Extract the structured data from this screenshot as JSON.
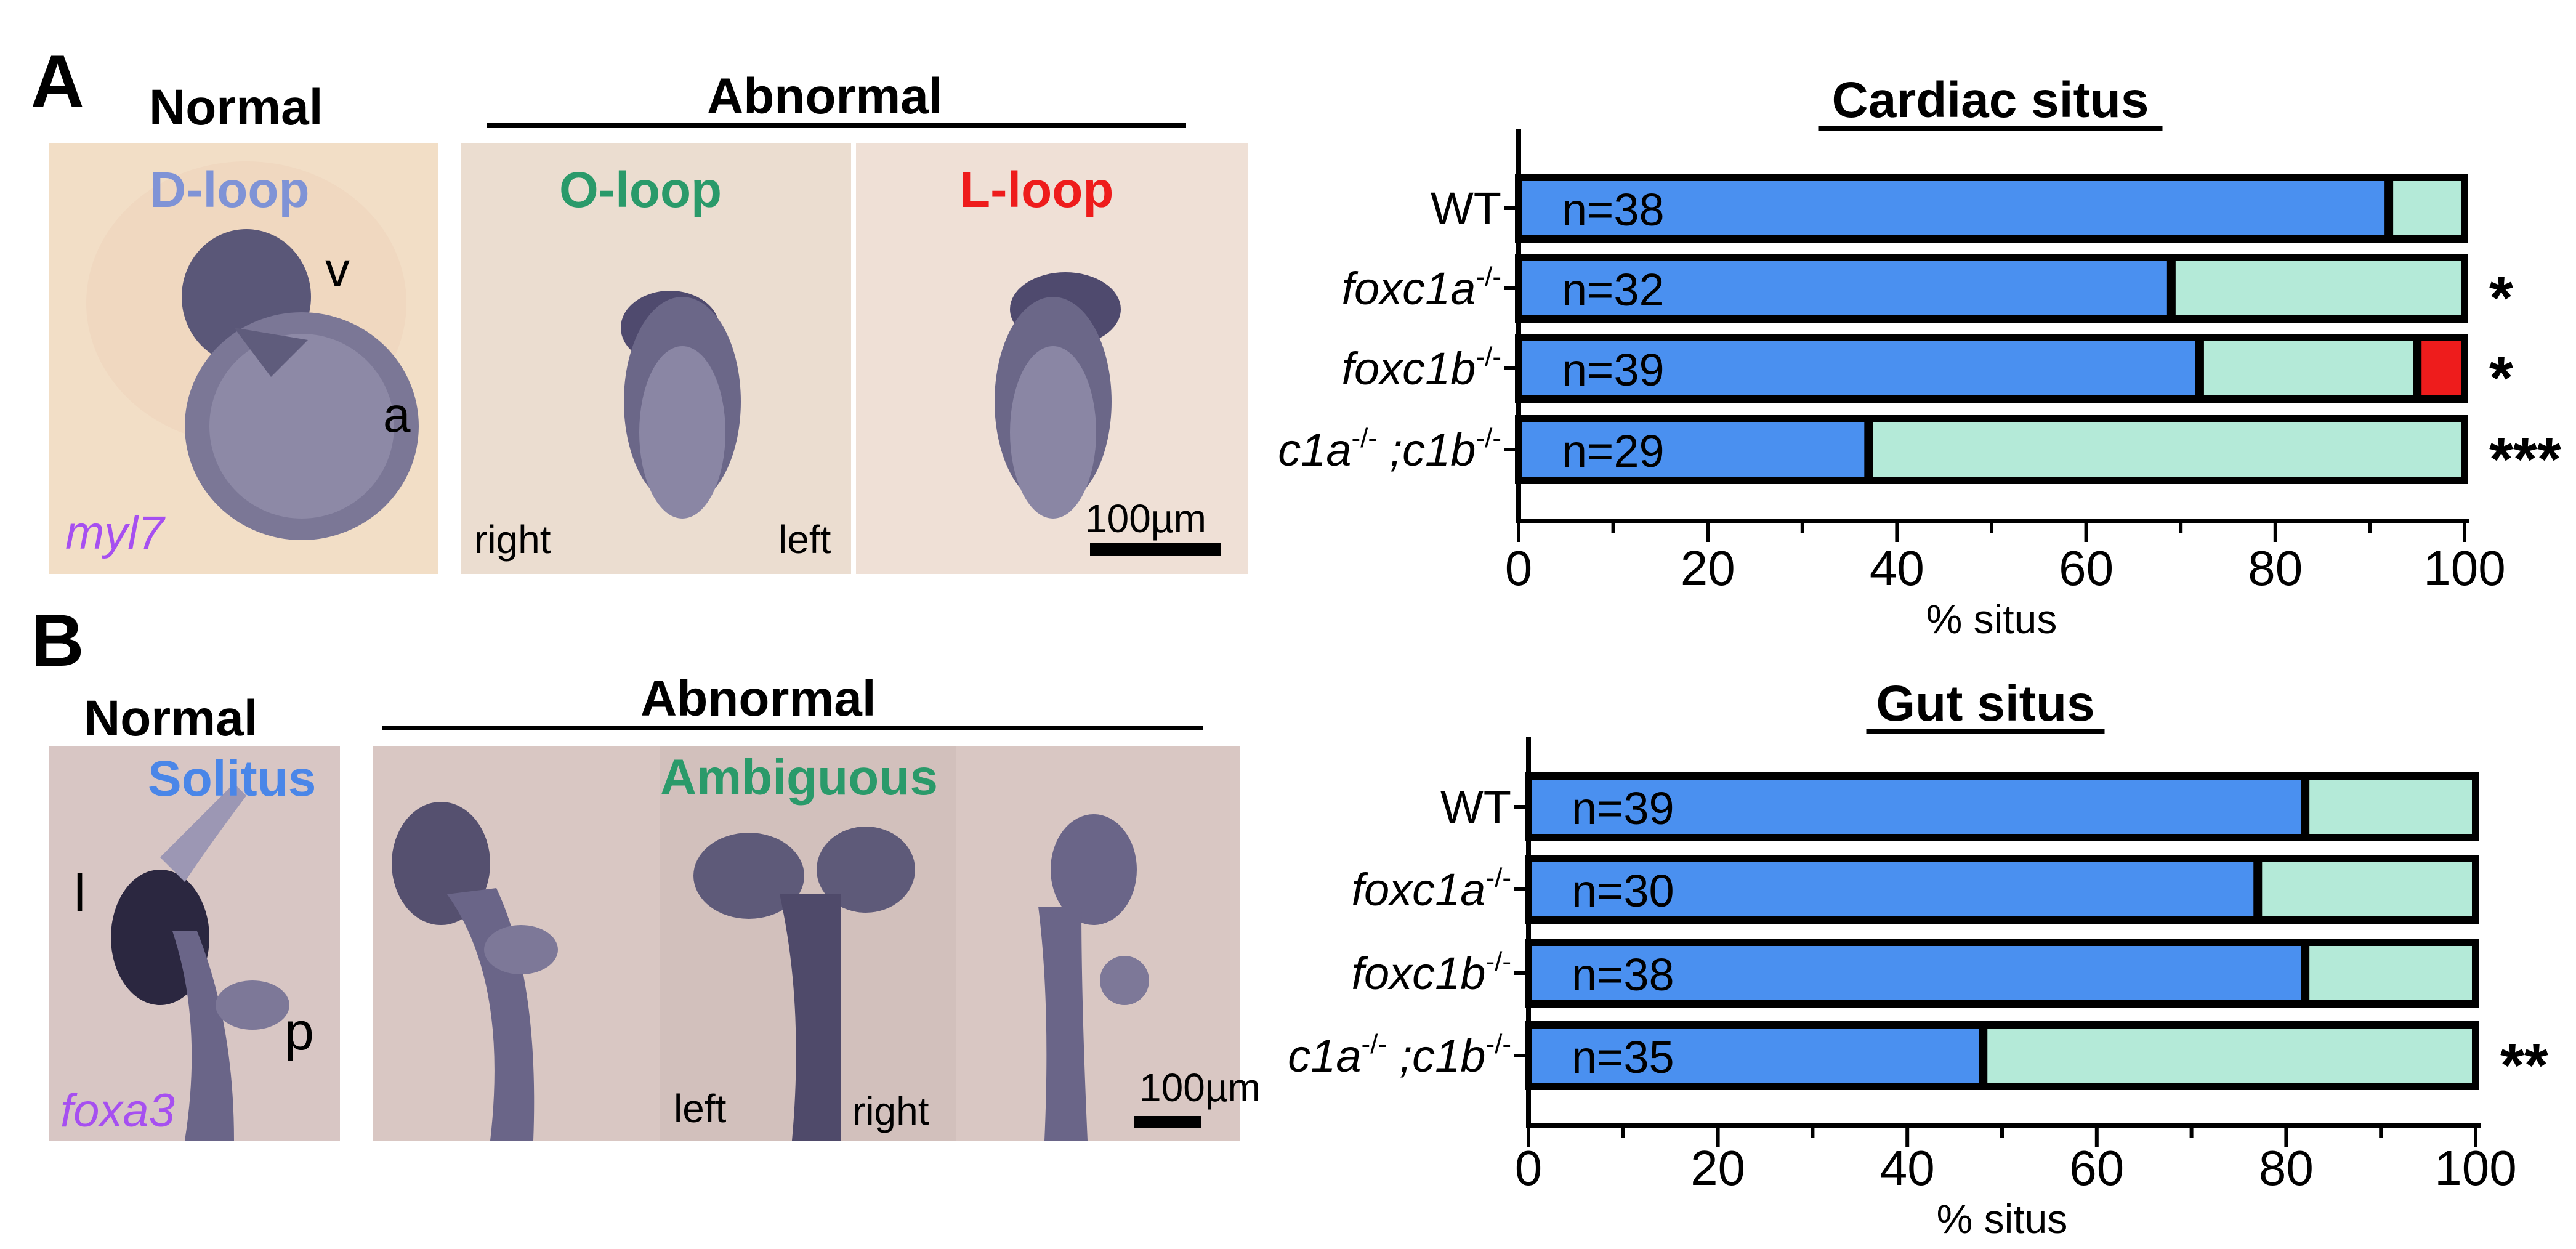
{
  "panelA": {
    "letter": "A",
    "normal_header": "Normal",
    "abnormal_header": "Abnormal",
    "dloop_label": "D-loop",
    "oloop_label": "O-loop",
    "lloop_label": "L-loop",
    "v_label": "v",
    "a_label": "a",
    "gene_label": "myl7",
    "right_label": "right",
    "left_label": "left",
    "scale_label": "100µm",
    "colors": {
      "dloop": "#7f93d6",
      "oloop": "#2a9a6a",
      "lloop": "#ee1c1c",
      "gene": "#a64ff0"
    }
  },
  "panelB": {
    "letter": "B",
    "normal_header": "Normal",
    "abnormal_header": "Abnormal",
    "solitus_label": "Solitus",
    "ambiguous_label": "Ambiguous",
    "l_label": "l",
    "p_label": "p",
    "gene_label": "foxa3",
    "left_label": "left",
    "right_label": "right",
    "scale_label": "100µm",
    "colors": {
      "solitus": "#4a86e8",
      "ambiguous": "#2a9a6a",
      "gene": "#a64ff0"
    }
  },
  "chart_data": [
    {
      "type": "bar",
      "orientation": "horizontal",
      "stacked": true,
      "title": "Cardiac situs",
      "xlabel": "% situs",
      "xlim": [
        0,
        100
      ],
      "xticks": [
        0,
        20,
        40,
        60,
        80,
        100
      ],
      "categories": [
        "WT",
        "foxc1a",
        "foxc1b",
        "c1a;c1b"
      ],
      "category_labels": [
        {
          "parts": [
            {
              "t": "WT",
              "italic": false
            }
          ]
        },
        {
          "parts": [
            {
              "t": "foxc1a",
              "italic": true
            },
            {
              "t": "-/-",
              "sup": true
            }
          ]
        },
        {
          "parts": [
            {
              "t": "foxc1b",
              "italic": true
            },
            {
              "t": "-/-",
              "sup": true
            }
          ]
        },
        {
          "parts": [
            {
              "t": "c1a",
              "italic": true
            },
            {
              "t": "-/-",
              "sup": true
            },
            {
              "t": " ;",
              "italic": true
            },
            {
              "t": "c1b",
              "italic": true
            },
            {
              "t": "-/-",
              "sup": true
            }
          ]
        }
      ],
      "n_labels": [
        "n=38",
        "n=32",
        "n=39",
        "n=29"
      ],
      "significance": [
        "",
        "*",
        "*",
        "***"
      ],
      "series": [
        {
          "name": "D-loop",
          "color": "#4a90f0",
          "values": [
            92,
            69,
            72,
            37
          ]
        },
        {
          "name": "O-loop",
          "color": "#b4ead8",
          "values": [
            8,
            31,
            23,
            63
          ]
        },
        {
          "name": "L-loop",
          "color": "#ee1c1c",
          "values": [
            0,
            0,
            5,
            0
          ]
        }
      ]
    },
    {
      "type": "bar",
      "orientation": "horizontal",
      "stacked": true,
      "title": "Gut situs",
      "xlabel": "% situs",
      "xlim": [
        0,
        100
      ],
      "xticks": [
        0,
        20,
        40,
        60,
        80,
        100
      ],
      "categories": [
        "WT",
        "foxc1a",
        "foxc1b",
        "c1a;c1b"
      ],
      "category_labels": [
        {
          "parts": [
            {
              "t": "WT",
              "italic": false
            }
          ]
        },
        {
          "parts": [
            {
              "t": "foxc1a",
              "italic": true
            },
            {
              "t": "-/-",
              "sup": true
            }
          ]
        },
        {
          "parts": [
            {
              "t": "foxc1b",
              "italic": true
            },
            {
              "t": "-/-",
              "sup": true
            }
          ]
        },
        {
          "parts": [
            {
              "t": "c1a",
              "italic": true
            },
            {
              "t": "-/-",
              "sup": true
            },
            {
              "t": " ;",
              "italic": true
            },
            {
              "t": "c1b",
              "italic": true
            },
            {
              "t": "-/-",
              "sup": true
            }
          ]
        }
      ],
      "n_labels": [
        "n=39",
        "n=30",
        "n=38",
        "n=35"
      ],
      "significance": [
        "",
        "",
        "",
        "**"
      ],
      "series": [
        {
          "name": "Solitus",
          "color": "#4a90f0",
          "values": [
            82,
            77,
            82,
            48
          ]
        },
        {
          "name": "Ambiguous",
          "color": "#b4ead8",
          "values": [
            18,
            23,
            18,
            52
          ]
        }
      ]
    }
  ]
}
